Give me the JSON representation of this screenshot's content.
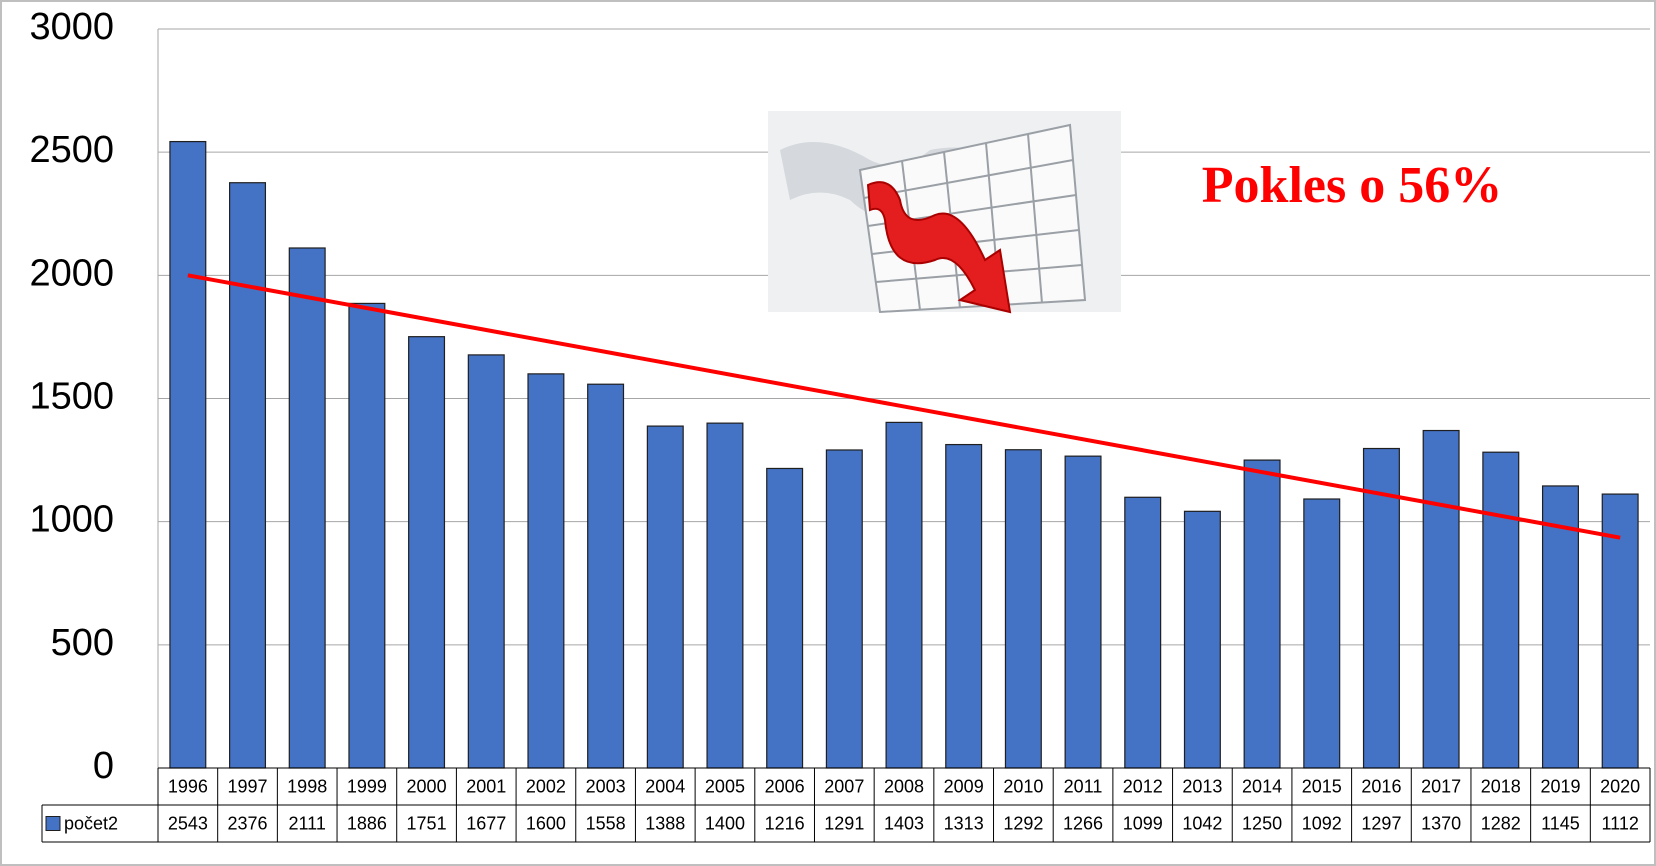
{
  "chart_data": {
    "type": "bar",
    "categories": [
      "1996",
      "1997",
      "1998",
      "1999",
      "2000",
      "2001",
      "2002",
      "2003",
      "2004",
      "2005",
      "2006",
      "2007",
      "2008",
      "2009",
      "2010",
      "2011",
      "2012",
      "2013",
      "2014",
      "2015",
      "2016",
      "2017",
      "2018",
      "2019",
      "2020"
    ],
    "series": [
      {
        "name": "počet2",
        "color": "#4472c4",
        "values": [
          2543,
          2376,
          2111,
          1886,
          1751,
          1677,
          1600,
          1558,
          1388,
          1400,
          1216,
          1291,
          1403,
          1313,
          1292,
          1266,
          1099,
          1042,
          1250,
          1092,
          1297,
          1370,
          1282,
          1145,
          1112
        ]
      }
    ],
    "ylim": [
      0,
      3000
    ],
    "yticks": [
      0,
      500,
      1000,
      1500,
      2000,
      2500,
      3000
    ],
    "grid": true,
    "trendline": {
      "color": "#ff0000",
      "values": [
        2000,
        935
      ]
    },
    "annotation": "Pokles o 56%"
  }
}
